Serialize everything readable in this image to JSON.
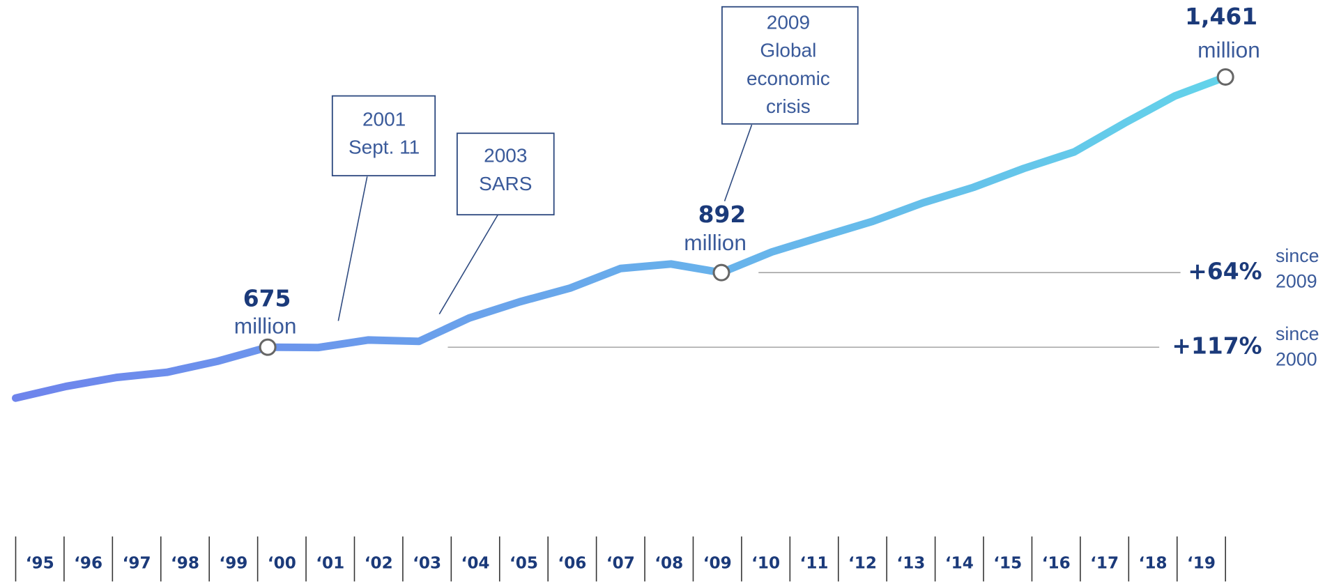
{
  "chart_data": {
    "type": "line",
    "categories": [
      "‘95",
      "‘96",
      "‘97",
      "‘98",
      "‘99",
      "‘00",
      "‘01",
      "‘02",
      "‘03",
      "‘04",
      "‘05",
      "‘06",
      "‘07",
      "‘08",
      "‘09",
      "‘10",
      "‘11",
      "‘12",
      "‘13",
      "‘14",
      "‘15",
      "‘16",
      "‘17",
      "‘18",
      "‘19"
    ],
    "values": [
      527,
      561,
      587,
      602,
      634,
      675,
      674,
      696,
      692,
      760,
      807,
      847,
      904,
      917,
      892,
      952,
      997,
      1041,
      1095,
      1140,
      1195,
      1243,
      1327,
      1406,
      1461
    ],
    "value_labels": [
      null,
      null,
      null,
      null,
      null,
      "675",
      null,
      null,
      null,
      null,
      null,
      null,
      null,
      null,
      "892",
      null,
      null,
      null,
      null,
      null,
      null,
      null,
      null,
      null,
      "1,461"
    ],
    "unit_label": "million",
    "gradient": [
      "#6e84ec",
      "#63d3ea"
    ],
    "events": [
      {
        "lines": [
          "2001",
          "Sept. 11"
        ]
      },
      {
        "lines": [
          "2003",
          "SARS"
        ]
      },
      {
        "lines": [
          "2009",
          "Global",
          "economic",
          "crisis"
        ]
      }
    ],
    "annotations": [
      {
        "text": "+64%",
        "lines": [
          "since",
          "2009"
        ]
      },
      {
        "text": "+117%",
        "lines": [
          "since",
          "2000"
        ]
      }
    ]
  }
}
